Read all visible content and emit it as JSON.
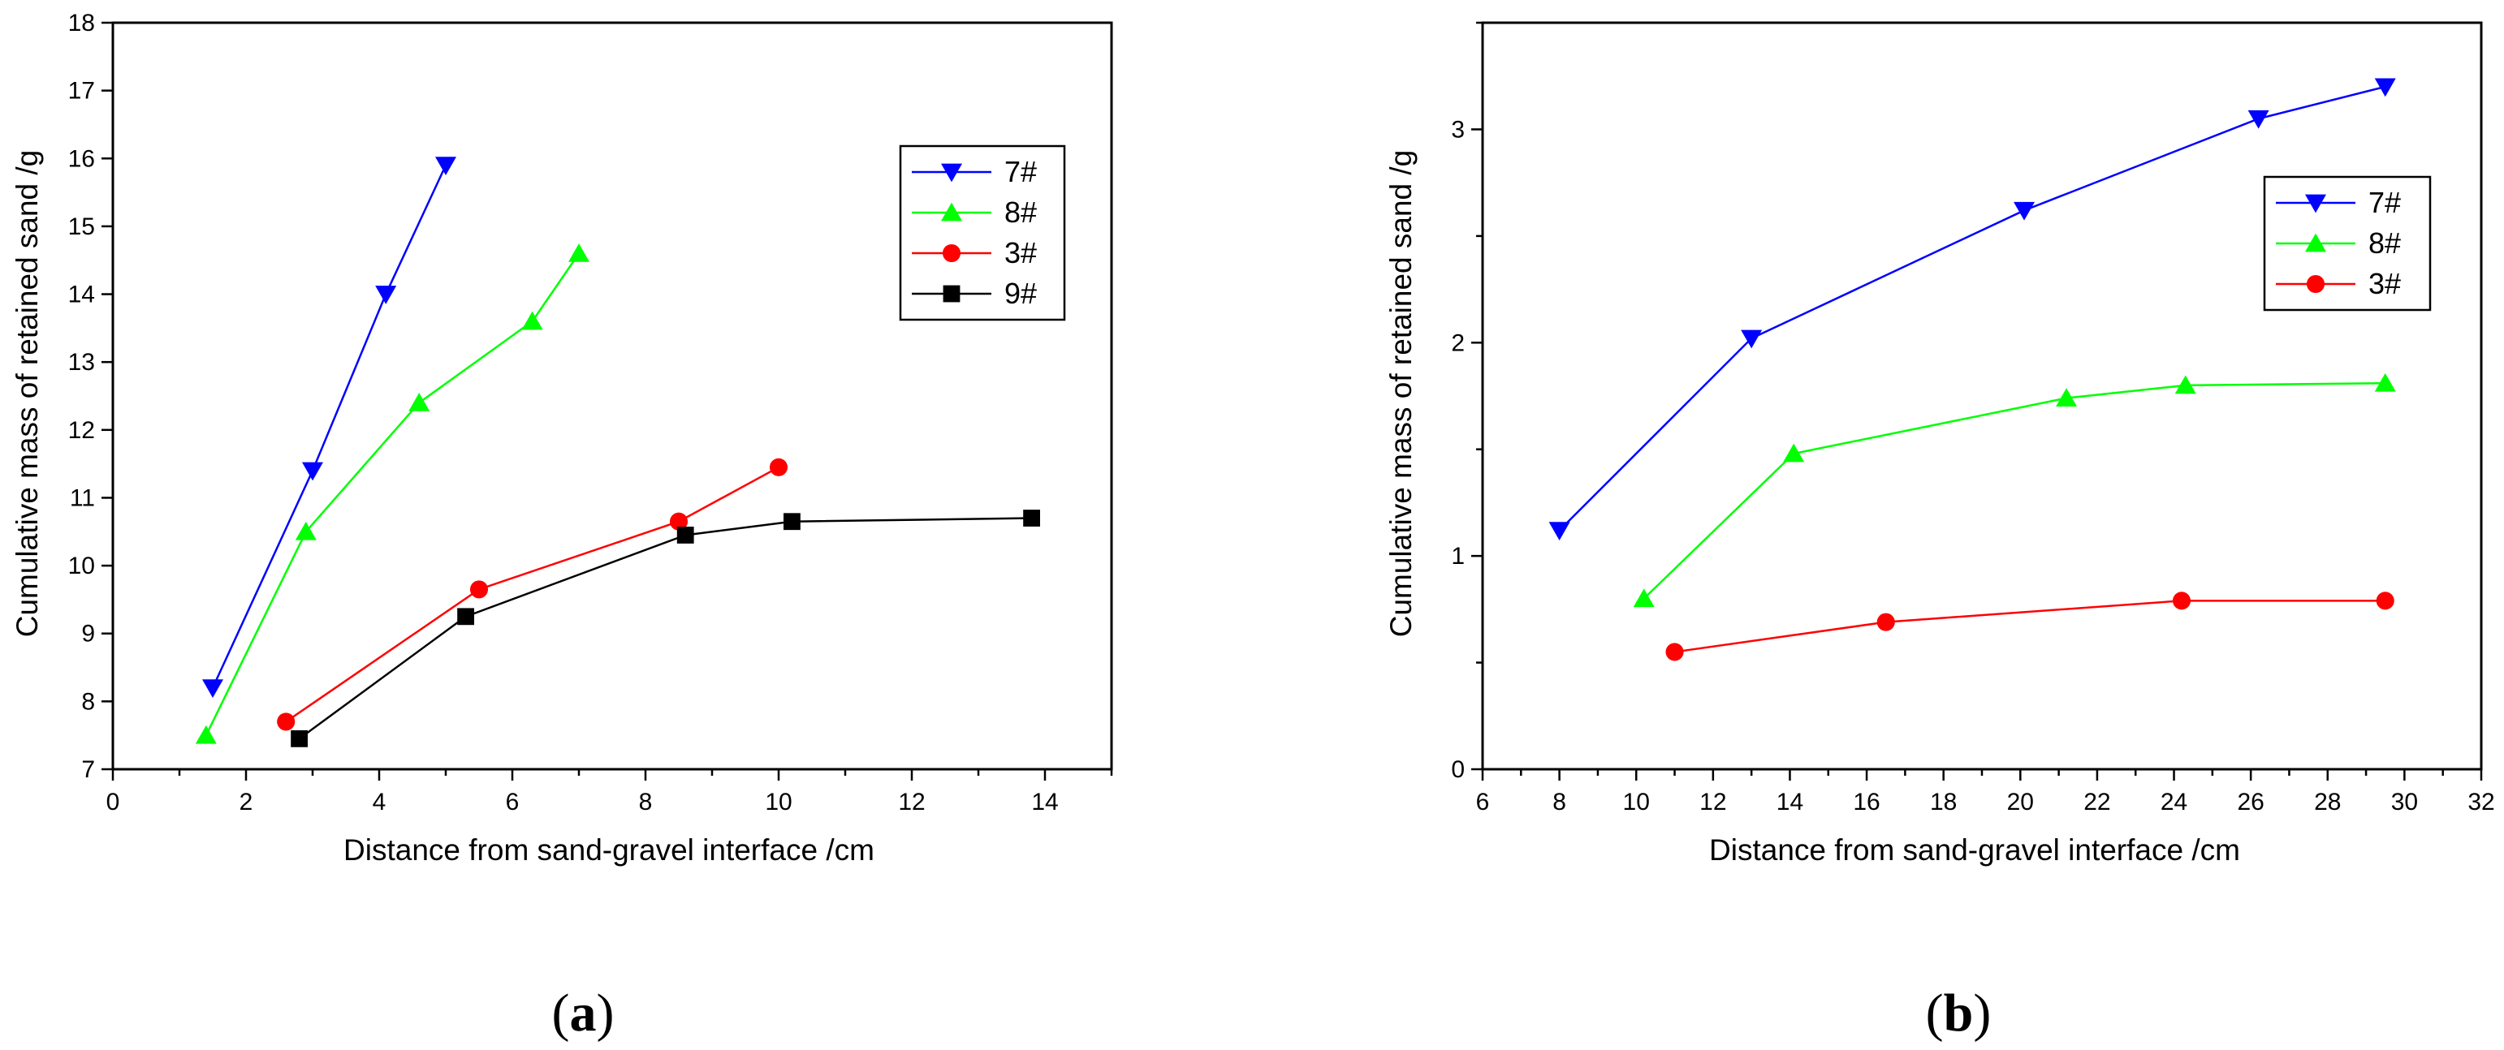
{
  "chart_data": [
    {
      "type": "line",
      "panel_label": "(a)",
      "panel_letter": "a",
      "xlabel": "Distance from sand-gravel interface /cm",
      "ylabel": "Cumulative mass of retained sand /g",
      "xlim": [
        0,
        15
      ],
      "ylim": [
        7,
        18
      ],
      "xticks": [
        0,
        2,
        4,
        6,
        8,
        10,
        12,
        14
      ],
      "yticks": [
        7,
        8,
        9,
        10,
        11,
        12,
        13,
        14,
        15,
        16,
        17,
        18
      ],
      "legend_position": "top-right",
      "series": [
        {
          "name": "7#",
          "color": "#0000ff",
          "marker": "triangle-down",
          "x": [
            1.5,
            3.0,
            4.1,
            5.0
          ],
          "y": [
            8.2,
            11.4,
            14.0,
            15.9
          ]
        },
        {
          "name": "8#",
          "color": "#00ff00",
          "marker": "triangle-up",
          "x": [
            1.4,
            2.9,
            4.6,
            6.3,
            7.0
          ],
          "y": [
            7.5,
            10.5,
            12.4,
            13.6,
            14.6
          ]
        },
        {
          "name": "3#",
          "color": "#ff0000",
          "marker": "circle",
          "x": [
            2.6,
            5.5,
            8.5,
            10.0
          ],
          "y": [
            7.7,
            9.65,
            10.65,
            11.45
          ]
        },
        {
          "name": "9#",
          "color": "#000000",
          "marker": "square",
          "x": [
            2.8,
            5.3,
            8.6,
            10.2,
            13.8
          ],
          "y": [
            7.45,
            9.25,
            10.45,
            10.65,
            10.7
          ]
        }
      ]
    },
    {
      "type": "line",
      "panel_label": "(b)",
      "panel_letter": "b",
      "xlabel": "Distance from sand-gravel interface /cm",
      "ylabel": "Cumulative mass of retained sand /g",
      "xlim": [
        6,
        32
      ],
      "ylim": [
        0,
        3.5
      ],
      "xticks": [
        6,
        8,
        10,
        12,
        14,
        16,
        18,
        20,
        22,
        24,
        26,
        28,
        30,
        32
      ],
      "yticks": [
        0,
        1,
        2,
        3
      ],
      "legend_position": "top-right",
      "series": [
        {
          "name": "7#",
          "color": "#0000ff",
          "marker": "triangle-down",
          "x": [
            8.0,
            13.0,
            20.1,
            26.2,
            29.5
          ],
          "y": [
            1.12,
            2.02,
            2.62,
            3.05,
            3.2
          ]
        },
        {
          "name": "8#",
          "color": "#00ff00",
          "marker": "triangle-up",
          "x": [
            10.2,
            14.1,
            21.2,
            24.3,
            29.5
          ],
          "y": [
            0.8,
            1.48,
            1.74,
            1.8,
            1.81
          ]
        },
        {
          "name": "3#",
          "color": "#ff0000",
          "marker": "circle",
          "x": [
            11.0,
            16.5,
            24.2,
            29.5
          ],
          "y": [
            0.55,
            0.69,
            0.79,
            0.79
          ]
        }
      ]
    }
  ]
}
